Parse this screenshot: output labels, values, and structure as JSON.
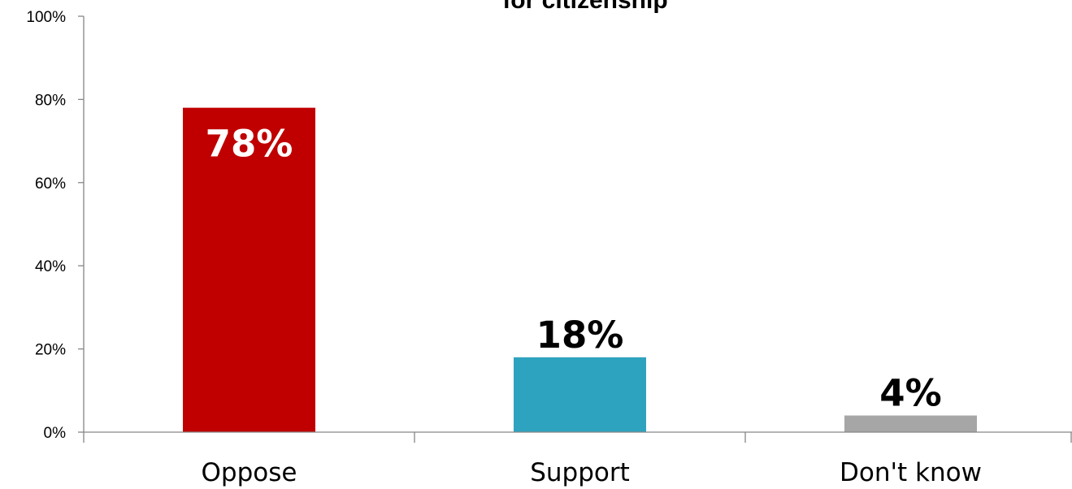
{
  "chart_data": {
    "type": "bar",
    "title": "for citizenship",
    "categories": [
      "Oppose",
      "Support",
      "Don't know"
    ],
    "values": [
      78,
      18,
      4
    ],
    "value_labels": [
      "78%",
      "18%",
      "4%"
    ],
    "colors": [
      "#c00000",
      "#2ea3bf",
      "#a6a6a6"
    ],
    "label_colors": [
      "#ffffff",
      "#000000",
      "#000000"
    ],
    "label_positions": [
      "inside-top",
      "above",
      "above"
    ],
    "xlabel": "",
    "ylabel": "",
    "ylim": [
      0,
      100
    ],
    "yticks": [
      "0%",
      "20%",
      "40%",
      "60%",
      "80%",
      "100%"
    ],
    "grid": false,
    "legend": "none"
  }
}
